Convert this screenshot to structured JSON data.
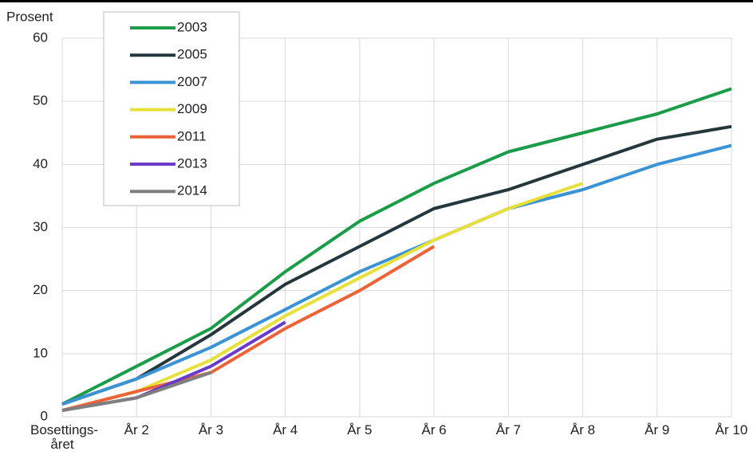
{
  "chart_data": {
    "type": "line",
    "y_label": "Prosent",
    "categories": [
      "Bosettings-året",
      "År 2",
      "År 3",
      "År 4",
      "År 5",
      "År 6",
      "År 7",
      "År 8",
      "År 9",
      "År 10"
    ],
    "series": [
      {
        "name": "2003",
        "color": "#1a9c48",
        "values": [
          2,
          8,
          14,
          23,
          31,
          37,
          42,
          45,
          48,
          52
        ]
      },
      {
        "name": "2005",
        "color": "#25373d",
        "values": [
          2,
          6,
          13,
          21,
          27,
          33,
          36,
          40,
          44,
          46
        ]
      },
      {
        "name": "2007",
        "color": "#3a93d4",
        "values": [
          2,
          6,
          11,
          17,
          23,
          28,
          33,
          36,
          40,
          43
        ]
      },
      {
        "name": "2009",
        "color": "#e8e03a",
        "values": [
          1,
          4,
          9,
          16,
          22,
          28,
          33,
          37,
          null,
          null
        ]
      },
      {
        "name": "2011",
        "color": "#eb6337",
        "values": [
          1,
          4,
          7,
          14,
          20,
          27,
          null,
          null,
          null,
          null
        ]
      },
      {
        "name": "2013",
        "color": "#6a3bc9",
        "values": [
          1,
          3,
          8,
          15,
          null,
          null,
          null,
          null,
          null,
          null
        ]
      },
      {
        "name": "2014",
        "color": "#7f7f7f",
        "values": [
          1,
          3,
          7,
          null,
          null,
          null,
          null,
          null,
          null,
          null
        ]
      }
    ],
    "ylim": [
      0,
      60
    ],
    "yticks": [
      0,
      10,
      20,
      30,
      40,
      50,
      60
    ],
    "grid": true,
    "legend": "top-left"
  }
}
